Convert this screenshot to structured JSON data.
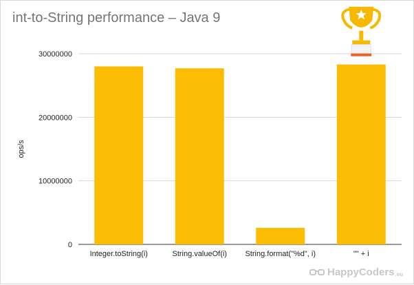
{
  "chart_data": {
    "type": "bar",
    "title": "int-to-String performance – Java 9",
    "ylabel": "ops/s",
    "xlabel": "",
    "categories": [
      "Integer.toString(i)",
      "String.valueOf(i)",
      "String.format(\"%d\", i)",
      "\"\" + i"
    ],
    "values": [
      28000000,
      27700000,
      2600000,
      28300000
    ],
    "ylim": [
      0,
      30000000
    ],
    "yticks": [
      0,
      10000000,
      20000000,
      30000000
    ],
    "ytick_labels": [
      "0",
      "10000000",
      "20000000",
      "30000000"
    ],
    "grid": true,
    "bar_color": "#fbbc04",
    "winner_index": 3
  },
  "watermark": {
    "text": "HappyCoders",
    "suffix": ".eu",
    "icon": "glasses-icon"
  },
  "trophy": {
    "icon": "trophy-icon",
    "color": "#f6b800",
    "star_color": "#ffffff"
  }
}
